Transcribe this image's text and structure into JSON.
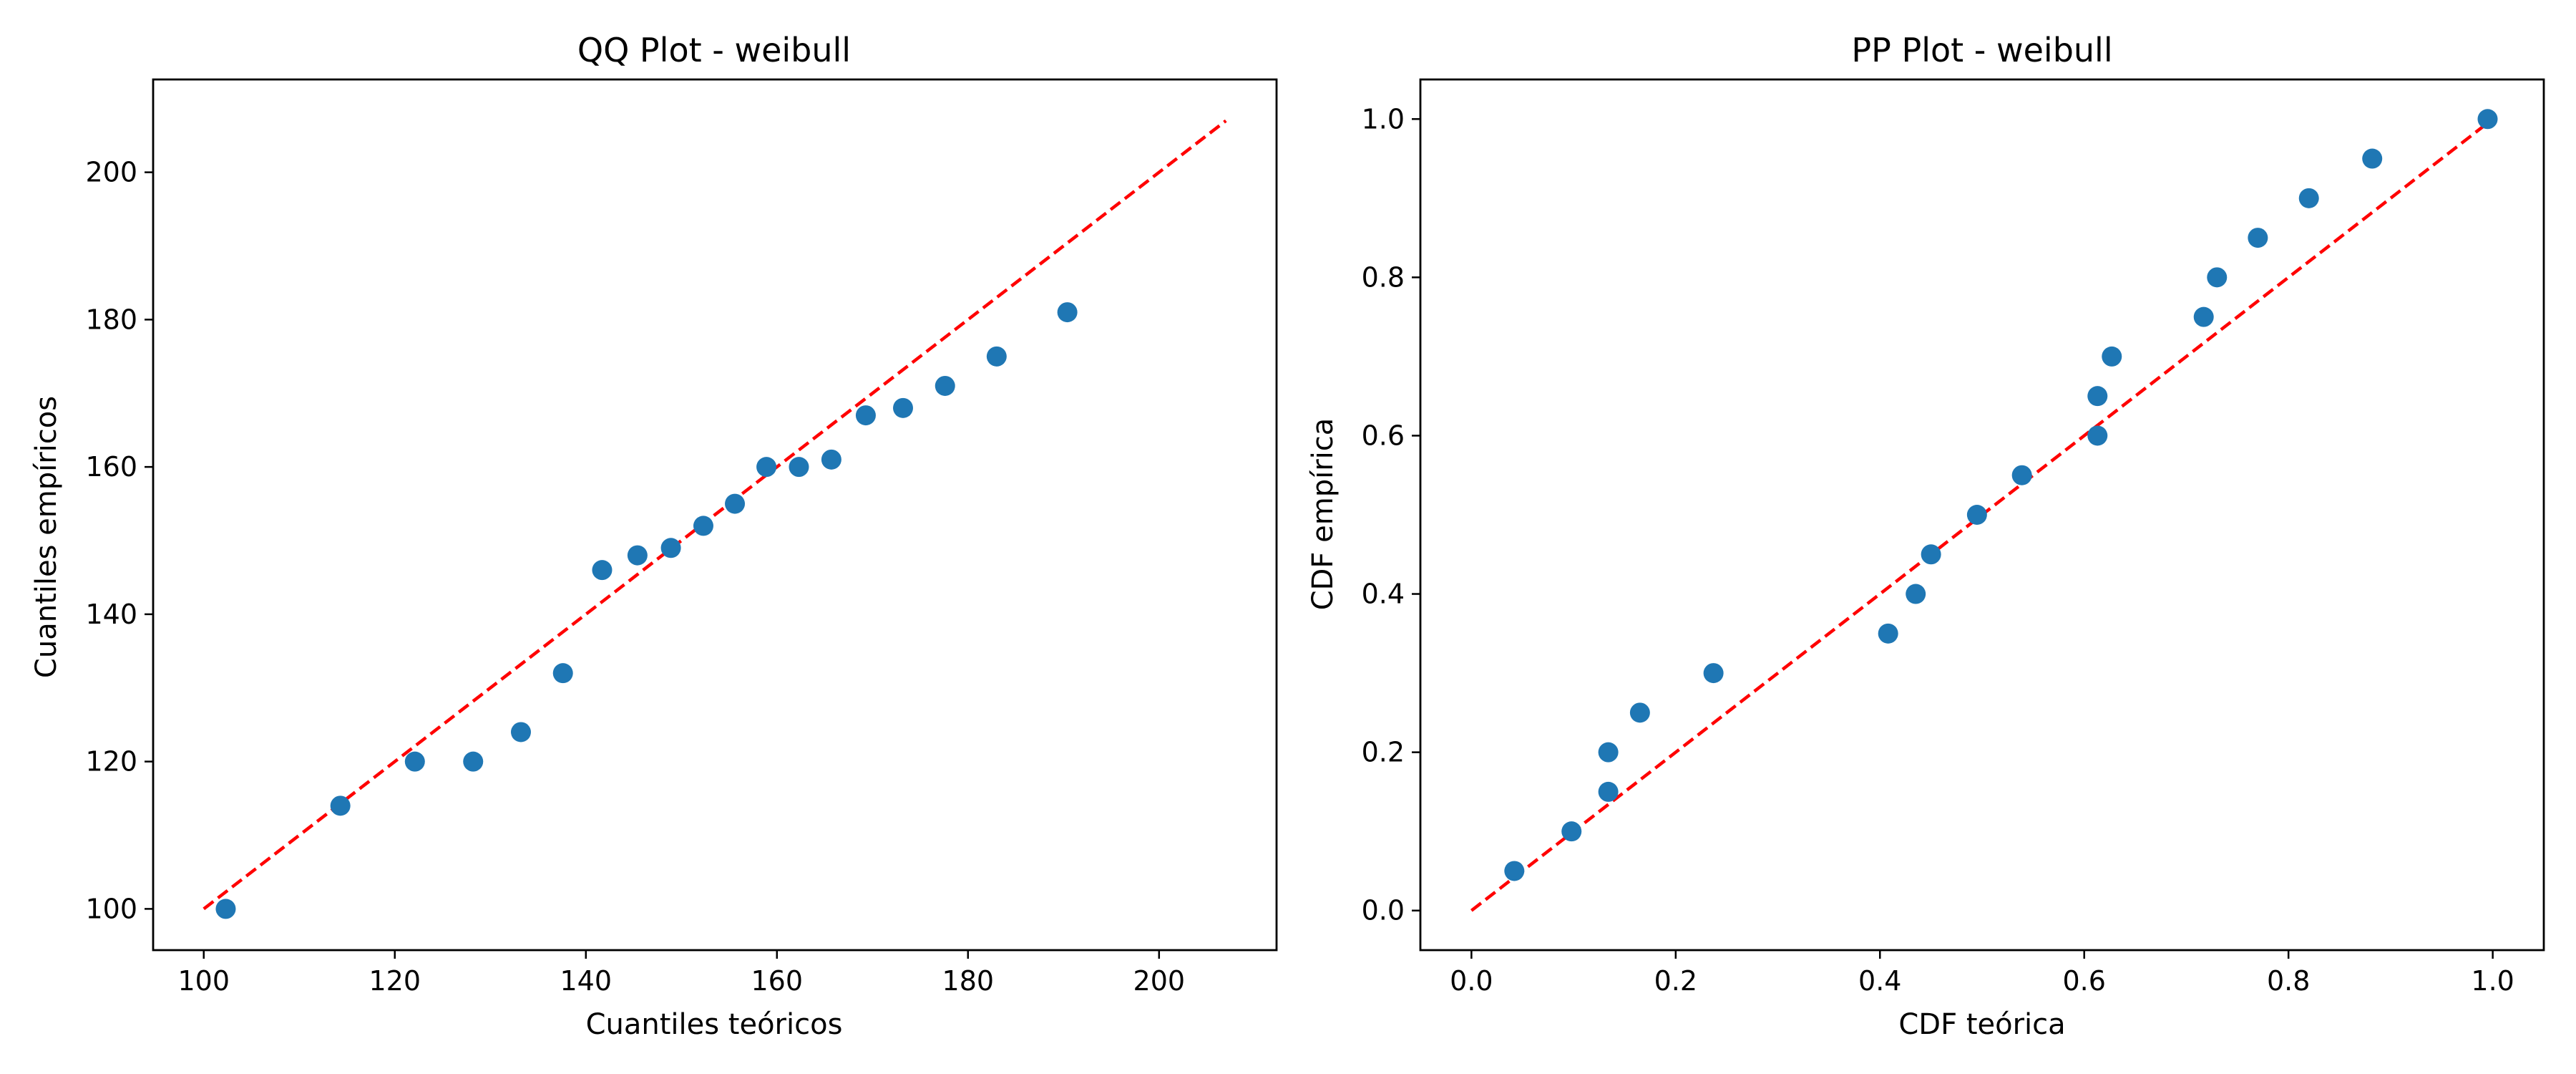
{
  "chart_data": [
    {
      "type": "scatter",
      "title": "QQ Plot - weibull",
      "xlabel": "Cuantiles teóricos",
      "ylabel": "Cuantiles empíricos",
      "xlim": [
        94.7,
        212.3
      ],
      "ylim": [
        94.4,
        212.6
      ],
      "xticks": [
        100,
        120,
        140,
        160,
        180,
        200
      ],
      "yticks": [
        100,
        120,
        140,
        160,
        180,
        200
      ],
      "grid": false,
      "point_color": "#1f77b4",
      "reference_line": {
        "x": [
          100,
          207
        ],
        "y": [
          100,
          207
        ],
        "color": "#ff0000",
        "style": "dashed"
      },
      "points": [
        [
          102.3,
          100
        ],
        [
          114.3,
          114
        ],
        [
          122.1,
          120
        ],
        [
          128.2,
          120
        ],
        [
          133.2,
          124
        ],
        [
          137.6,
          132
        ],
        [
          141.7,
          146
        ],
        [
          145.4,
          148
        ],
        [
          148.9,
          149
        ],
        [
          152.3,
          152
        ],
        [
          155.6,
          155
        ],
        [
          158.9,
          160
        ],
        [
          162.3,
          160
        ],
        [
          165.7,
          161
        ],
        [
          169.3,
          167
        ],
        [
          173.2,
          168
        ],
        [
          177.6,
          171
        ],
        [
          183.0,
          175
        ],
        [
          190.4,
          181
        ]
      ]
    },
    {
      "type": "scatter",
      "title": "PP Plot - weibull",
      "xlabel": "CDF teórica",
      "ylabel": "CDF empírica",
      "xlim": [
        -0.05,
        1.05
      ],
      "ylim": [
        -0.05,
        1.05
      ],
      "xticks": [
        0.0,
        0.2,
        0.4,
        0.6,
        0.8,
        1.0
      ],
      "yticks": [
        0.0,
        0.2,
        0.4,
        0.6,
        0.8,
        1.0
      ],
      "tick_format": "0.0",
      "grid": false,
      "point_color": "#1f77b4",
      "reference_line": {
        "x": [
          0,
          1
        ],
        "y": [
          0,
          1
        ],
        "color": "#ff0000",
        "style": "dashed"
      },
      "points": [
        [
          0.042,
          0.05
        ],
        [
          0.098,
          0.1
        ],
        [
          0.134,
          0.15
        ],
        [
          0.134,
          0.2
        ],
        [
          0.165,
          0.25
        ],
        [
          0.237,
          0.3
        ],
        [
          0.408,
          0.35
        ],
        [
          0.435,
          0.4
        ],
        [
          0.45,
          0.45
        ],
        [
          0.495,
          0.5
        ],
        [
          0.539,
          0.55
        ],
        [
          0.613,
          0.6
        ],
        [
          0.613,
          0.65
        ],
        [
          0.627,
          0.7
        ],
        [
          0.717,
          0.75
        ],
        [
          0.73,
          0.8
        ],
        [
          0.77,
          0.85
        ],
        [
          0.82,
          0.9
        ],
        [
          0.882,
          0.95
        ],
        [
          0.995,
          1.0
        ]
      ]
    }
  ]
}
